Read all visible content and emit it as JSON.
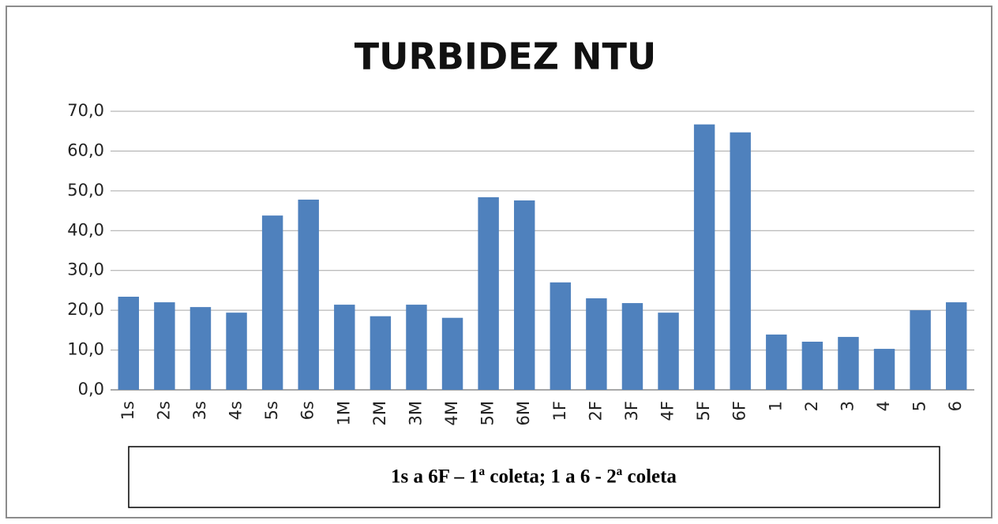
{
  "chart_data": {
    "type": "bar",
    "title": "TURBIDEZ NTU",
    "categories": [
      "1s",
      "2s",
      "3s",
      "4s",
      "5s",
      "6s",
      "1M",
      "2M",
      "3M",
      "4M",
      "5M",
      "6M",
      "1F",
      "2F",
      "3F",
      "4F",
      "5F",
      "6F",
      "1",
      "2",
      "3",
      "4",
      "5",
      "6"
    ],
    "values": [
      23.4,
      22.0,
      20.8,
      19.4,
      43.8,
      47.8,
      21.4,
      18.5,
      21.4,
      18.1,
      48.4,
      47.6,
      27.0,
      23.0,
      21.8,
      19.4,
      66.7,
      64.7,
      13.9,
      12.1,
      13.3,
      10.3,
      20.0,
      22.0
    ],
    "color": "#4f81bd",
    "ylim": [
      0,
      70
    ],
    "yticks": [
      {
        "value": 0,
        "label": "0,0"
      },
      {
        "value": 10,
        "label": "10,0"
      },
      {
        "value": 20,
        "label": "20,0"
      },
      {
        "value": 30,
        "label": "30,0"
      },
      {
        "value": 40,
        "label": "40,0"
      },
      {
        "value": 50,
        "label": "50,0"
      },
      {
        "value": 60,
        "label": "60,0"
      },
      {
        "value": 70,
        "label": "70,0"
      }
    ],
    "grid": true,
    "annotation": "1s a 6F – 1ª coleta; 1 a 6  - 2ª coleta"
  }
}
